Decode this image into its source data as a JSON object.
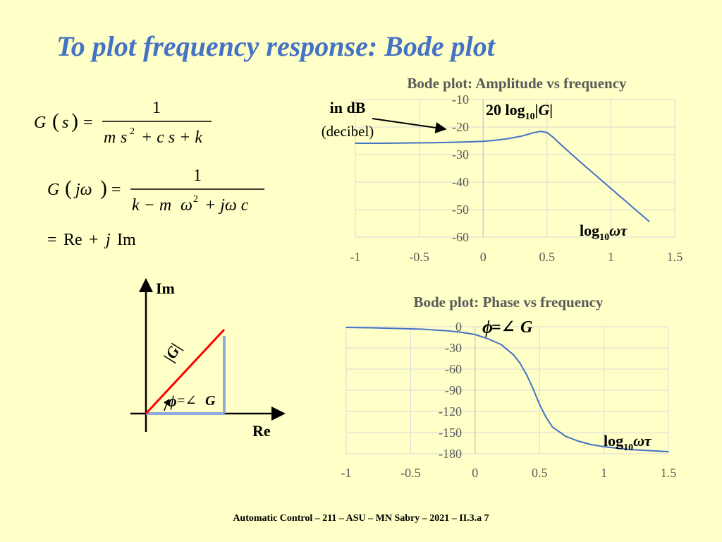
{
  "slide": {
    "title": "To plot frequency response: Bode plot",
    "footer": "Automatic Control – 211 – ASU – MN Sabry – 2021 – II.3.a 7"
  },
  "equations": {
    "eq1": {
      "lhs_fn": "G",
      "lhs_arg": "s",
      "eq": "=",
      "num": "1",
      "den_m": "m",
      "den_s": "s",
      "den_sq": "2",
      "den_rest": "+ c s + k"
    },
    "eq2": {
      "lhs_fn": "G",
      "lhs_arg": "jω",
      "eq": "=",
      "num": "1",
      "den_a": "k − m",
      "den_w": "ω",
      "den_sq": "2",
      "den_b": "+ jω c"
    },
    "eq3": {
      "eq": "=",
      "re": "Re",
      "plus": "+",
      "j": "j",
      "im": "Im"
    }
  },
  "phasor": {
    "im_label": "Im",
    "re_label": "Re",
    "mag_label": "|G|",
    "phase_phi": "ϕ",
    "phase_eq": "=∠",
    "phase_g": "G",
    "colors": {
      "axes": "#000000",
      "vector": "#FF0000",
      "components": "#8FAADC"
    }
  },
  "annotations": {
    "db_label": "in dB",
    "db_sub": "(decibel)",
    "amp_formula": "20 log",
    "amp_sub": "10",
    "amp_abs_g": "|G|",
    "x_log_main": "log",
    "x_log_sub": "10",
    "x_log_var": "ωτ",
    "phase_phi": "ϕ",
    "phase_eq": "=∠",
    "phase_g": "G"
  },
  "chart_data": [
    {
      "type": "line",
      "title": "Bode plot: Amplitude vs frequency",
      "xlabel": "",
      "ylabel": "",
      "xlim": [
        -1,
        1.5
      ],
      "ylim": [
        -60,
        -10
      ],
      "xticks": [
        -1,
        -0.5,
        0,
        0.5,
        1,
        1.5
      ],
      "yticks": [
        -10,
        -20,
        -30,
        -40,
        -50,
        -60
      ],
      "grid": true,
      "color": "#4472C4",
      "series": [
        {
          "x": [
            -1,
            -0.8,
            -0.6,
            -0.4,
            -0.2,
            0,
            0.1,
            0.2,
            0.3,
            0.4,
            0.45,
            0.5,
            0.55,
            0.6,
            0.7,
            0.8,
            0.9,
            1.0,
            1.1,
            1.2,
            1.3
          ],
          "values": [
            -25.9,
            -25.9,
            -25.8,
            -25.7,
            -25.5,
            -25.2,
            -24.8,
            -24.2,
            -23.3,
            -22.0,
            -21.6,
            -22.0,
            -23.8,
            -26.0,
            -30.2,
            -34.3,
            -38.3,
            -42.3,
            -46.3,
            -50.3,
            -54.3
          ]
        }
      ]
    },
    {
      "type": "line",
      "title": "Bode plot: Phase vs frequency",
      "xlabel": "",
      "ylabel": "",
      "xlim": [
        -1,
        1.5
      ],
      "ylim": [
        -180,
        0
      ],
      "xticks": [
        -1,
        -0.5,
        0,
        0.5,
        1,
        1.5
      ],
      "yticks": [
        0,
        -30,
        -60,
        -90,
        -120,
        -150,
        -180
      ],
      "grid": true,
      "color": "#4472C4",
      "series": [
        {
          "x": [
            -1,
            -0.8,
            -0.6,
            -0.4,
            -0.2,
            -0.1,
            0,
            0.1,
            0.2,
            0.3,
            0.35,
            0.4,
            0.45,
            0.5,
            0.55,
            0.6,
            0.7,
            0.8,
            0.9,
            1.0,
            1.2,
            1.5
          ],
          "values": [
            -1,
            -1.5,
            -2.5,
            -3.5,
            -6,
            -8,
            -11,
            -17,
            -25,
            -40,
            -52,
            -68,
            -88,
            -110,
            -128,
            -142,
            -155,
            -162,
            -167,
            -170,
            -174,
            -177
          ]
        }
      ]
    }
  ]
}
